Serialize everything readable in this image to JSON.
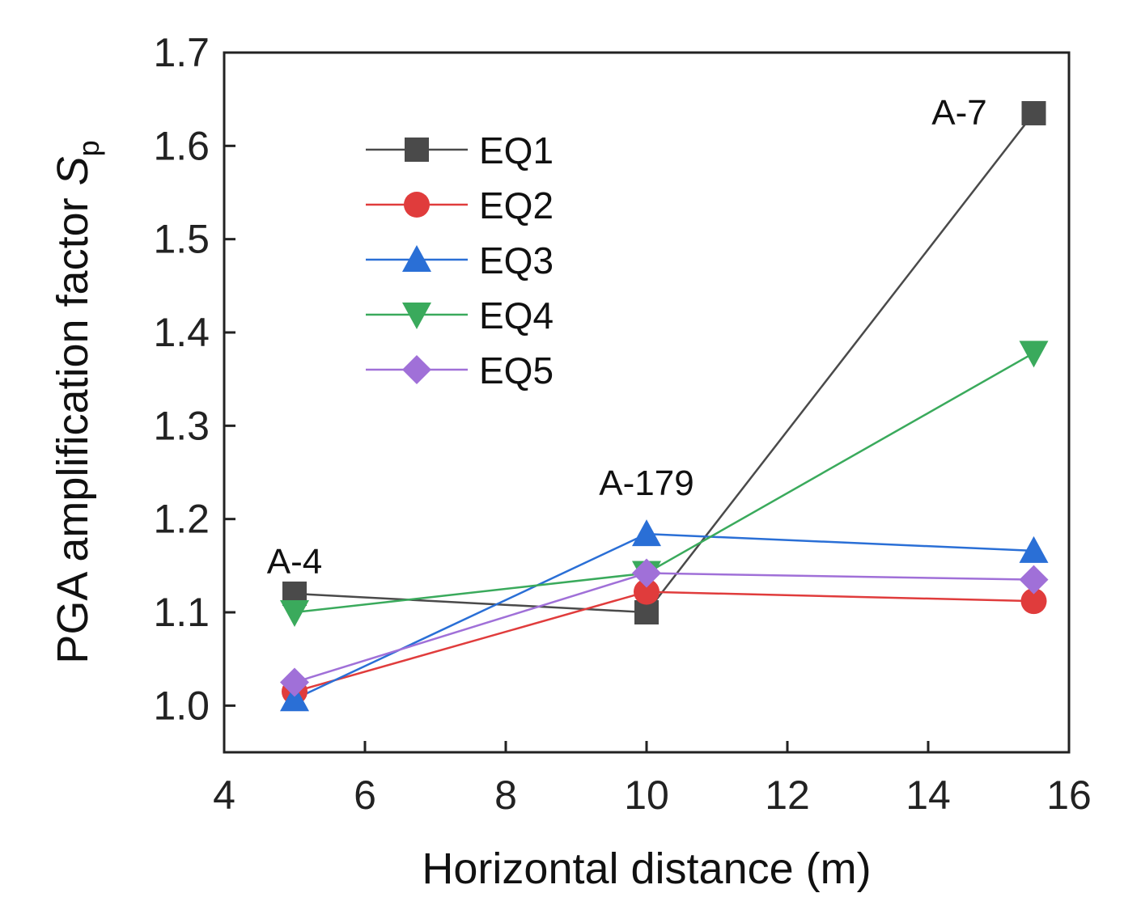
{
  "chart_data": {
    "type": "line",
    "xlabel": "Horizontal distance (m)",
    "ylabel_main": "PGA amplification factor ",
    "ylabel_symbol": "S",
    "ylabel_subscript": "p",
    "xlim": [
      4,
      16
    ],
    "ylim": [
      0.95,
      1.7
    ],
    "xticks": [
      4,
      6,
      8,
      10,
      12,
      14,
      16
    ],
    "yticks": [
      1.0,
      1.1,
      1.2,
      1.3,
      1.4,
      1.5,
      1.6,
      1.7
    ],
    "x": [
      5,
      10,
      15.5
    ],
    "grid": false,
    "legend_position": "top-left",
    "series": [
      {
        "name": "EQ1",
        "values": [
          1.12,
          1.1,
          1.635
        ],
        "color": "#4a4a4a",
        "marker": "square"
      },
      {
        "name": "EQ2",
        "values": [
          1.015,
          1.122,
          1.112
        ],
        "color": "#e03c3c",
        "marker": "circle"
      },
      {
        "name": "EQ3",
        "values": [
          1.007,
          1.184,
          1.166
        ],
        "color": "#2a6fd6",
        "marker": "triangle-up"
      },
      {
        "name": "EQ4",
        "values": [
          1.1,
          1.142,
          1.378
        ],
        "color": "#3aaa5c",
        "marker": "triangle-down"
      },
      {
        "name": "EQ5",
        "values": [
          1.025,
          1.142,
          1.135
        ],
        "color": "#a070d8",
        "marker": "diamond"
      }
    ],
    "annotations": [
      {
        "text": "A-4",
        "x": 5,
        "y": 1.1
      },
      {
        "text": "A-179",
        "x": 10,
        "y": 1.184
      },
      {
        "text": "A-7",
        "x": 15.5,
        "y": 1.635
      }
    ]
  }
}
